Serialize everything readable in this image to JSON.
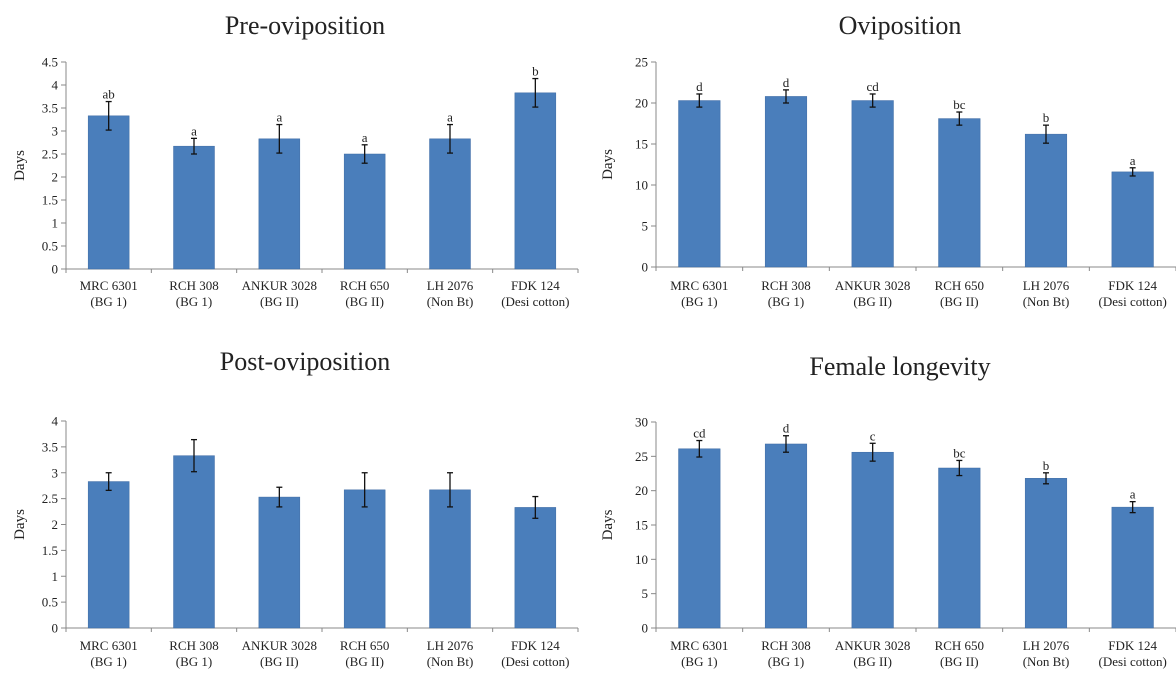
{
  "chart_data": [
    {
      "type": "bar",
      "title": "Pre-oviposition",
      "ylabel": "Days",
      "ylim": [
        0,
        4.5
      ],
      "yticks": [
        0,
        0.5,
        1,
        1.5,
        2,
        2.5,
        3,
        3.5,
        4,
        4.5
      ],
      "categories": [
        [
          "MRC 6301",
          "(BG 1)"
        ],
        [
          "RCH 308",
          "(BG 1)"
        ],
        [
          "ANKUR 3028",
          "(BG II)"
        ],
        [
          "RCH 650",
          "(BG II)"
        ],
        [
          "LH 2076",
          "(Non Bt)"
        ],
        [
          "FDK 124",
          "(Desi cotton)"
        ]
      ],
      "values": [
        3.33,
        2.67,
        2.83,
        2.5,
        2.83,
        3.83
      ],
      "errors": [
        0.31,
        0.17,
        0.31,
        0.2,
        0.31,
        0.31
      ],
      "labels": [
        "ab",
        "a",
        "a",
        "a",
        "a",
        "b"
      ],
      "colors": {
        "bar": "#4a7ebb"
      }
    },
    {
      "type": "bar",
      "title": "Oviposition",
      "ylabel": "Days",
      "ylim": [
        0,
        25
      ],
      "yticks": [
        0,
        5,
        10,
        15,
        20,
        25
      ],
      "categories": [
        [
          "MRC 6301",
          "(BG 1)"
        ],
        [
          "RCH 308",
          "(BG 1)"
        ],
        [
          "ANKUR 3028",
          "(BG II)"
        ],
        [
          "RCH 650",
          "(BG II)"
        ],
        [
          "LH 2076",
          "(Non Bt)"
        ],
        [
          "FDK 124",
          "(Desi cotton)"
        ]
      ],
      "values": [
        20.3,
        20.8,
        20.3,
        18.1,
        16.2,
        11.6
      ],
      "errors": [
        0.8,
        0.8,
        0.8,
        0.8,
        1.1,
        0.5
      ],
      "labels": [
        "d",
        "d",
        "cd",
        "bc",
        "b",
        "a"
      ],
      "colors": {
        "bar": "#4a7ebb"
      }
    },
    {
      "type": "bar",
      "title": "Post-oviposition",
      "ylabel": "Days",
      "ylim": [
        0,
        4
      ],
      "yticks": [
        0,
        0.5,
        1,
        1.5,
        2,
        2.5,
        3,
        3.5,
        4
      ],
      "categories": [
        [
          "MRC 6301",
          "(BG 1)"
        ],
        [
          "RCH 308",
          "(BG 1)"
        ],
        [
          "ANKUR 3028",
          "(BG II)"
        ],
        [
          "RCH 650",
          "(BG II)"
        ],
        [
          "LH 2076",
          "(Non Bt)"
        ],
        [
          "FDK 124",
          "(Desi cotton)"
        ]
      ],
      "values": [
        2.83,
        3.33,
        2.53,
        2.67,
        2.67,
        2.33
      ],
      "errors": [
        0.17,
        0.31,
        0.19,
        0.33,
        0.33,
        0.21
      ],
      "labels": [
        "",
        "",
        "",
        "",
        "",
        ""
      ],
      "colors": {
        "bar": "#4a7ebb"
      }
    },
    {
      "type": "bar",
      "title": "Female longevity",
      "ylabel": "Days",
      "ylim": [
        0,
        30
      ],
      "yticks": [
        0,
        5,
        10,
        15,
        20,
        25,
        30
      ],
      "categories": [
        [
          "MRC 6301",
          "(BG 1)"
        ],
        [
          "RCH 308",
          "(BG 1)"
        ],
        [
          "ANKUR 3028",
          "(BG II)"
        ],
        [
          "RCH 650",
          "(BG II)"
        ],
        [
          "LH 2076",
          "(Non Bt)"
        ],
        [
          "FDK 124",
          "(Desi cotton)"
        ]
      ],
      "values": [
        26.1,
        26.8,
        25.6,
        23.3,
        21.8,
        17.6
      ],
      "errors": [
        1.2,
        1.2,
        1.3,
        1.1,
        0.8,
        0.8
      ],
      "labels": [
        "cd",
        "d",
        "c",
        "bc",
        "b",
        "a"
      ],
      "colors": {
        "bar": "#4a7ebb"
      }
    }
  ]
}
